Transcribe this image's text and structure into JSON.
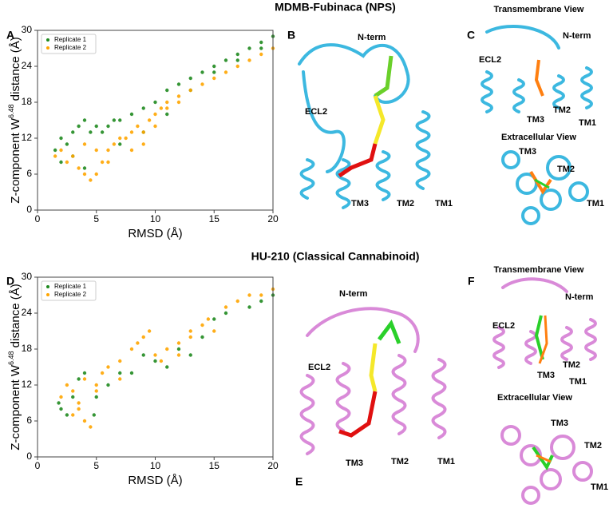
{
  "titles": [
    "MDMB-Fubinaca (NPS)",
    "HU-210 (Classical Cannabinoid)"
  ],
  "panel_labels": [
    "A",
    "B",
    "C",
    "D",
    "E",
    "F"
  ],
  "structure_labels": {
    "B": [
      "N-term",
      "ECL2",
      "TM3",
      "TM2",
      "TM1"
    ],
    "C": [
      "Transmembrane View",
      "N-term",
      "ECL2",
      "TM3",
      "TM2",
      "TM1",
      "Extracellular View",
      "TM3",
      "TM2",
      "TM1"
    ],
    "E": [
      "N-term",
      "ECL2",
      "TM3",
      "TM2",
      "TM1"
    ],
    "F": [
      "Transmembrane View",
      "N-term",
      "ECL2",
      "TM3",
      "TM2",
      "TM1",
      "Extracellular View",
      "TM3",
      "TM2",
      "TM1"
    ]
  },
  "chart_data": [
    {
      "type": "scatter",
      "xlabel": "RMSD (Å)",
      "ylabel": [
        "Z-component W",
        "6.48",
        " distance (Å)"
      ],
      "xlim": [
        0,
        20
      ],
      "ylim": [
        0,
        30
      ],
      "xticks": [
        0,
        5,
        10,
        15,
        20
      ],
      "yticks": [
        0,
        6,
        12,
        18,
        24,
        30
      ],
      "legend": "upper left",
      "series": [
        {
          "name": "Replicate 1",
          "color": "#1f8a1f",
          "x": [
            1.5,
            2,
            2.5,
            3,
            3,
            3.5,
            4,
            4.5,
            5,
            5.5,
            6,
            6.5,
            7,
            8,
            9,
            10,
            11,
            12,
            13,
            14,
            15,
            16,
            17,
            18,
            19,
            20,
            2,
            4,
            7,
            9,
            11,
            13,
            15,
            17,
            19
          ],
          "y": [
            10,
            12,
            11,
            13,
            9,
            14,
            15,
            13,
            14,
            13,
            14,
            15,
            15,
            16,
            17,
            18,
            20,
            21,
            22,
            23,
            24,
            25,
            26,
            27,
            28,
            29,
            8,
            7,
            11,
            13,
            16,
            20,
            23,
            25,
            27
          ]
        },
        {
          "name": "Replicate 2",
          "color": "#ffa500",
          "x": [
            1.5,
            2,
            2.5,
            3,
            3.5,
            4,
            4.5,
            5,
            5,
            5.5,
            6,
            6.5,
            7,
            7.5,
            8,
            8.5,
            9,
            9.5,
            10,
            10.5,
            11,
            12,
            13,
            14,
            15,
            16,
            17,
            18,
            19,
            20,
            4,
            6,
            8,
            9,
            11,
            12,
            10
          ],
          "y": [
            9,
            10,
            8,
            9,
            7,
            6,
            5,
            6,
            10,
            8,
            10,
            11,
            12,
            12,
            13,
            14,
            13,
            15,
            16,
            17,
            18,
            19,
            20,
            21,
            22,
            23,
            24,
            25,
            26,
            27,
            11,
            8,
            10,
            11,
            17,
            18,
            14
          ]
        }
      ]
    },
    {
      "type": "scatter",
      "xlabel": "RMSD (Å)",
      "ylabel": [
        "Z-component W",
        "6.48",
        " distance (Å)"
      ],
      "xlim": [
        0,
        20
      ],
      "ylim": [
        0,
        30
      ],
      "xticks": [
        0,
        5,
        10,
        15,
        20
      ],
      "yticks": [
        0,
        6,
        12,
        18,
        24,
        30
      ],
      "legend": "upper left",
      "series": [
        {
          "name": "Replicate 1",
          "color": "#1f8a1f",
          "x": [
            1.8,
            2,
            2.5,
            3,
            3.5,
            4,
            4.8,
            5,
            6,
            7,
            9,
            10,
            11,
            12,
            13,
            14,
            15,
            16,
            18,
            19,
            20,
            8
          ],
          "y": [
            9,
            8,
            7,
            10,
            13,
            14,
            7,
            10,
            12,
            14,
            17,
            16,
            15,
            18,
            17,
            20,
            23,
            24,
            25,
            26,
            27,
            14
          ]
        },
        {
          "name": "Replicate 2",
          "color": "#ffa500",
          "x": [
            2,
            2.5,
            3,
            3,
            3.5,
            4,
            4.5,
            4,
            5,
            5.5,
            6,
            7,
            8,
            8.5,
            9,
            9.5,
            10,
            10.5,
            11,
            12,
            13,
            14,
            14.5,
            15,
            16,
            17,
            18,
            19,
            20,
            7,
            12,
            13,
            3.5,
            5
          ],
          "y": [
            10,
            12,
            11,
            7,
            8,
            6,
            5,
            13,
            12,
            14,
            15,
            16,
            18,
            19,
            20,
            21,
            17,
            16,
            18,
            19,
            21,
            22,
            23,
            21,
            25,
            26,
            27,
            27,
            28,
            13,
            17,
            20,
            9,
            11
          ]
        }
      ]
    }
  ]
}
